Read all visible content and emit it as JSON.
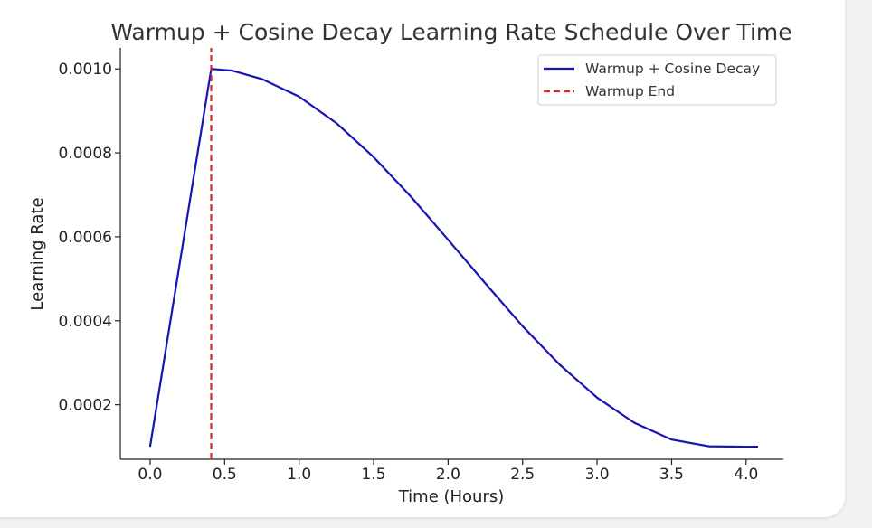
{
  "chart_data": {
    "type": "line",
    "title": "Warmup + Cosine Decay Learning Rate Schedule Over Time",
    "xlabel": "Time (Hours)",
    "ylabel": "Learning Rate",
    "xlim": [
      -0.2,
      4.25
    ],
    "ylim": [
      7e-05,
      0.00105
    ],
    "x_ticks": [
      "0.0",
      "0.5",
      "1.0",
      "1.5",
      "2.0",
      "2.5",
      "3.0",
      "3.5",
      "4.0"
    ],
    "y_ticks": [
      "0.0002",
      "0.0004",
      "0.0006",
      "0.0008",
      "0.0010"
    ],
    "grid": false,
    "legend_position": "top-right",
    "series": [
      {
        "name": "Warmup + Cosine Decay",
        "color": "#1414b8",
        "style": "solid",
        "x": [
          0.0,
          0.41,
          0.55,
          0.75,
          1.0,
          1.25,
          1.5,
          1.75,
          2.0,
          2.25,
          2.5,
          2.75,
          3.0,
          3.25,
          3.5,
          3.75,
          4.0,
          4.08
        ],
        "y": [
          0.0001,
          0.001,
          0.000996,
          0.000976,
          0.000934,
          0.000871,
          0.00079,
          0.000696,
          0.000593,
          0.000489,
          0.000387,
          0.000295,
          0.000217,
          0.000157,
          0.000117,
          0.000101,
          0.0001,
          0.0001
        ]
      },
      {
        "name": "Warmup End",
        "color": "#d62a2a",
        "style": "dashed",
        "x": [
          0.41,
          0.41
        ],
        "y": [
          7e-05,
          0.00105
        ]
      }
    ]
  }
}
